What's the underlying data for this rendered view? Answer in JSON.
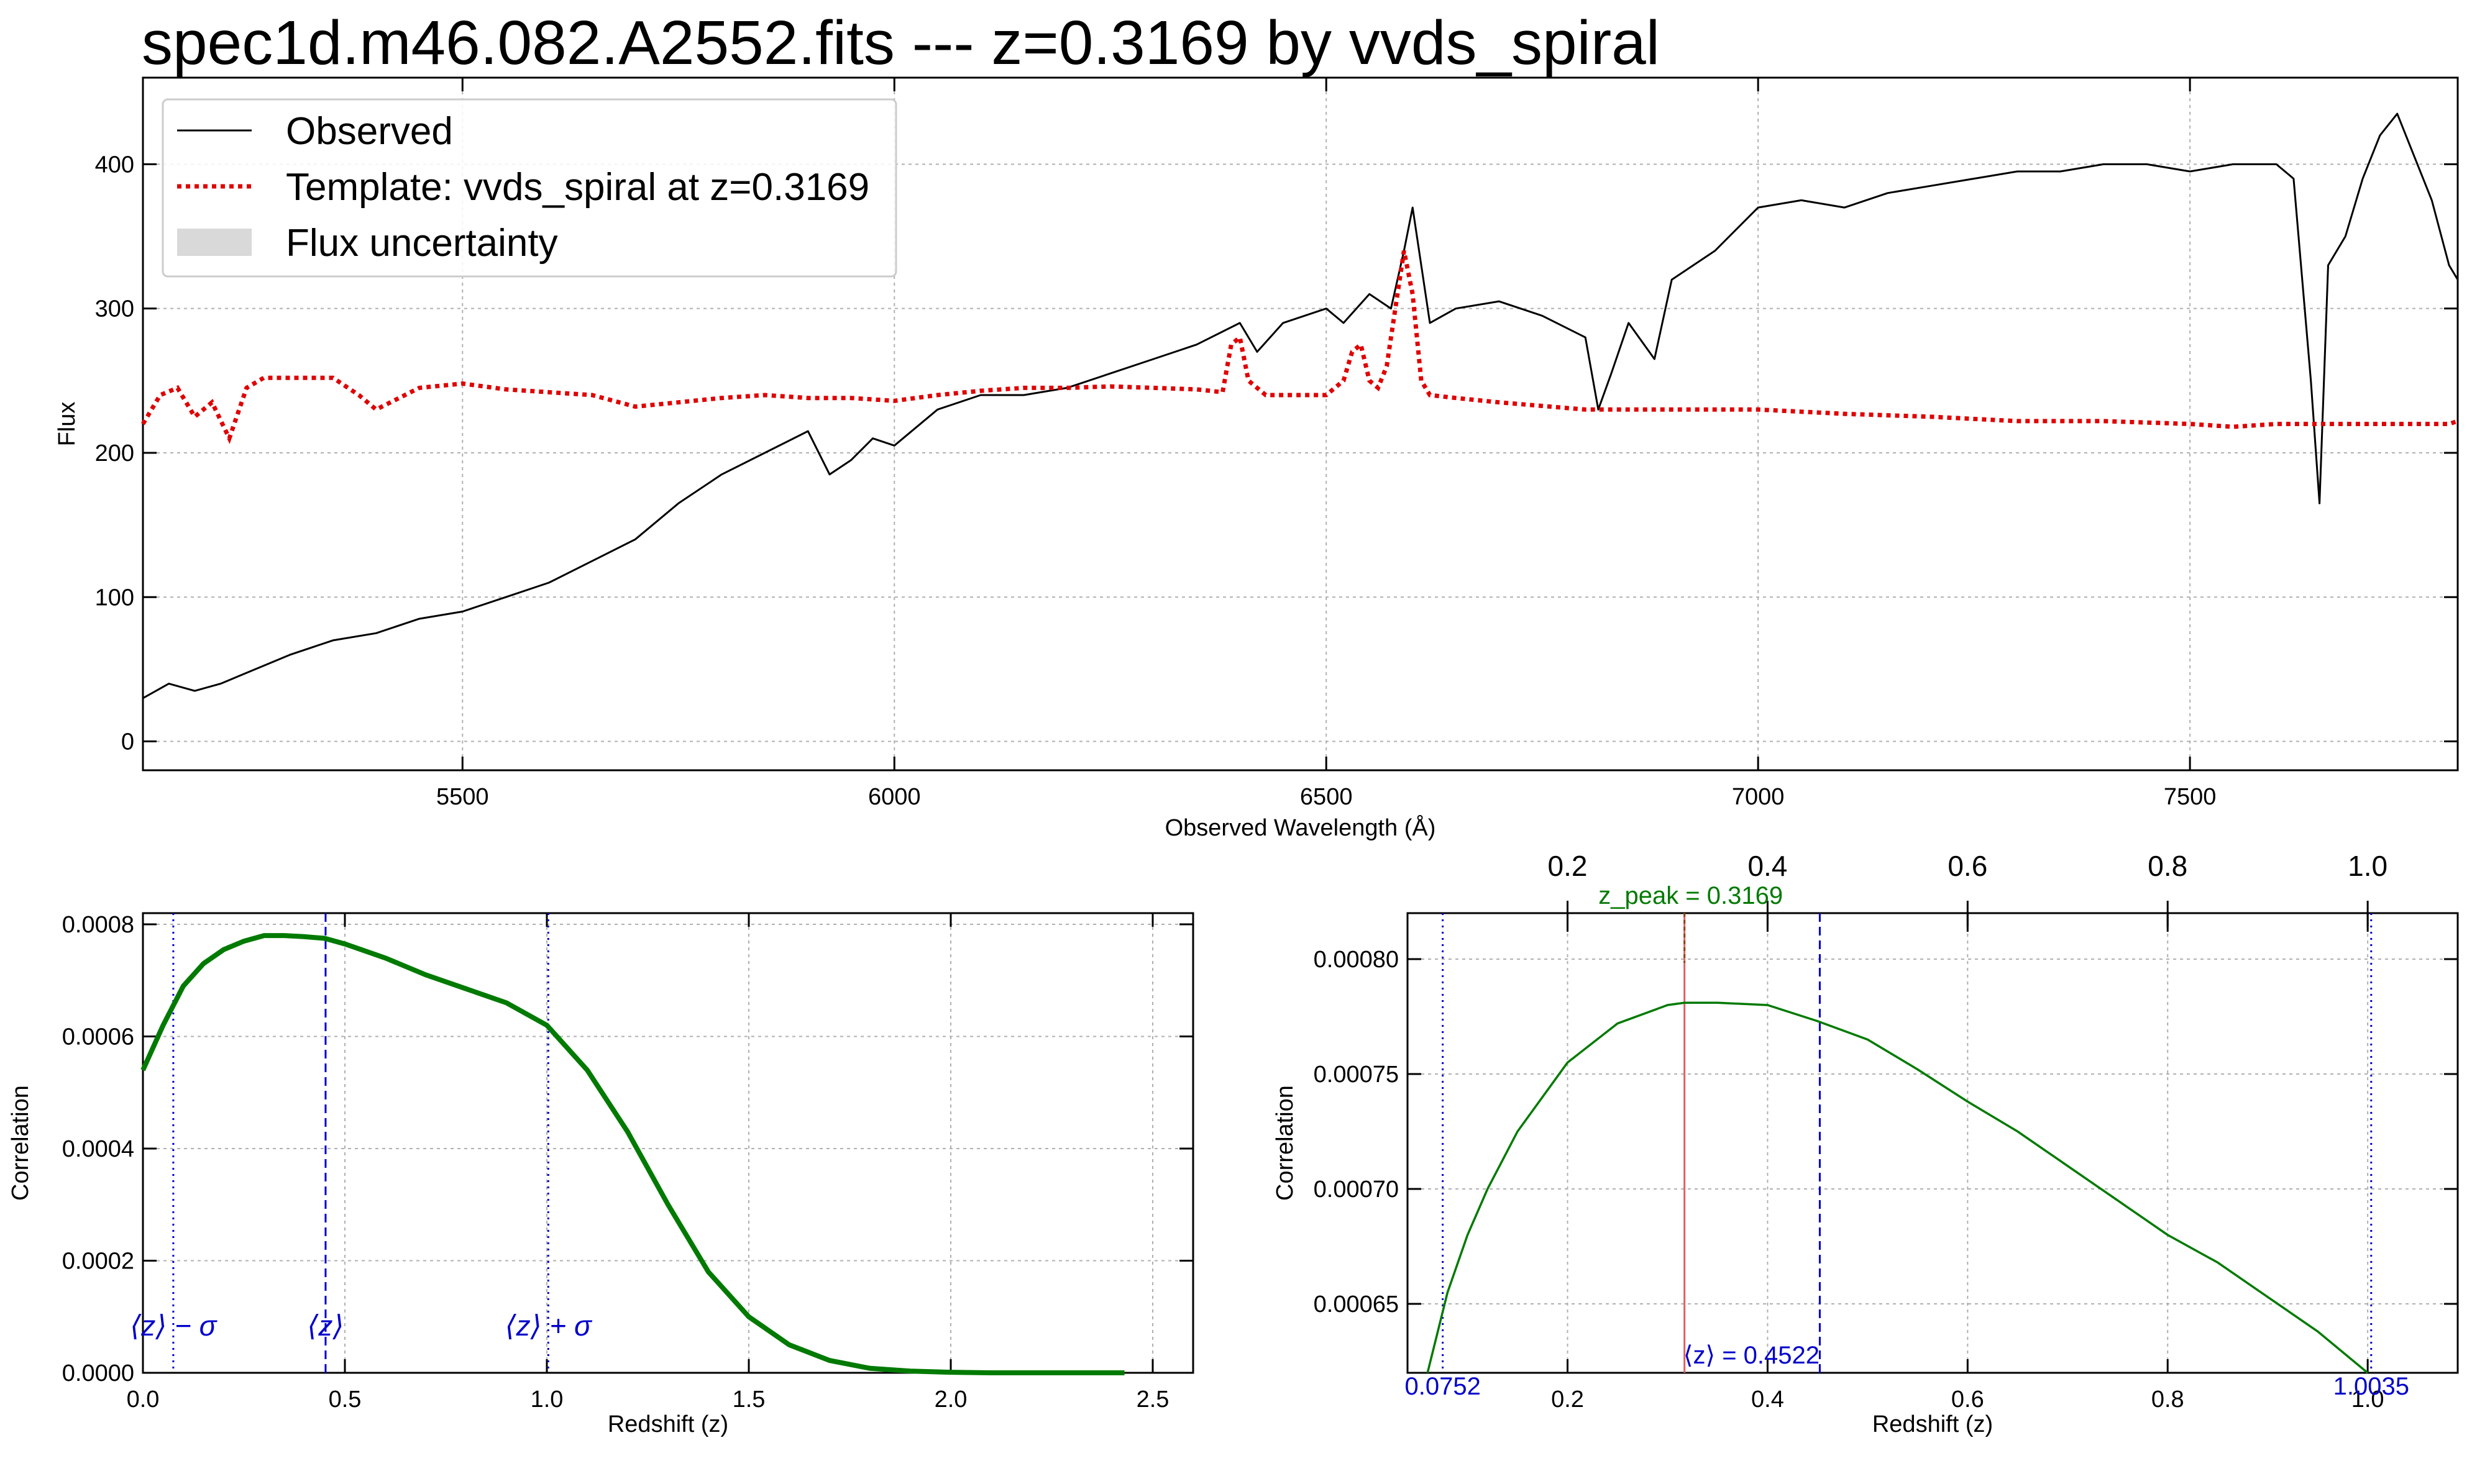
{
  "title": "spec1d.m46.082.A2552.fits --- z=0.3169 by vvds_spiral",
  "colors": {
    "observed": "#000000",
    "template": "#e00000",
    "uncertainty": "#d9d9d9",
    "correlation": "#007a00",
    "zmean": "#0000cc",
    "zpeak_line": "#e06060",
    "grid": "#b0b0b0"
  },
  "chart_data": [
    {
      "type": "line",
      "xlabel": "Observed Wavelength (Å)",
      "ylabel": "Flux",
      "xlim": [
        5130,
        7810
      ],
      "ylim": [
        -20,
        460
      ],
      "xticks": [
        5500,
        6000,
        6500,
        7000,
        7500
      ],
      "yticks": [
        0,
        100,
        200,
        300,
        400
      ],
      "grid": true,
      "legend_position": "top-left",
      "legend": [
        "Observed",
        "Template: vvds_spiral at z=0.3169",
        "Flux uncertainty"
      ],
      "series": [
        {
          "name": "Observed",
          "x": [
            5130,
            5160,
            5190,
            5220,
            5260,
            5300,
            5350,
            5400,
            5450,
            5500,
            5550,
            5600,
            5650,
            5700,
            5750,
            5800,
            5850,
            5900,
            5925,
            5950,
            5975,
            6000,
            6050,
            6100,
            6150,
            6200,
            6250,
            6300,
            6350,
            6400,
            6420,
            6450,
            6500,
            6520,
            6550,
            6575,
            6590,
            6600,
            6620,
            6650,
            6700,
            6750,
            6800,
            6815,
            6830,
            6850,
            6880,
            6900,
            6950,
            7000,
            7050,
            7100,
            7150,
            7200,
            7250,
            7300,
            7350,
            7400,
            7450,
            7500,
            7550,
            7600,
            7620,
            7640,
            7650,
            7660,
            7680,
            7700,
            7720,
            7740,
            7760,
            7780,
            7800,
            7810
          ],
          "y": [
            30,
            40,
            35,
            40,
            50,
            60,
            70,
            75,
            85,
            90,
            100,
            110,
            125,
            140,
            165,
            185,
            200,
            215,
            185,
            195,
            210,
            205,
            230,
            240,
            240,
            245,
            255,
            265,
            275,
            290,
            270,
            290,
            300,
            290,
            310,
            300,
            340,
            370,
            290,
            300,
            305,
            295,
            280,
            230,
            255,
            290,
            265,
            320,
            340,
            370,
            375,
            370,
            380,
            385,
            390,
            395,
            395,
            400,
            400,
            395,
            400,
            400,
            390,
            250,
            165,
            330,
            350,
            390,
            420,
            435,
            405,
            375,
            330,
            320
          ]
        },
        {
          "name": "Template: vvds_spiral at z=0.3169",
          "x": [
            5130,
            5150,
            5170,
            5190,
            5210,
            5230,
            5250,
            5270,
            5300,
            5350,
            5380,
            5400,
            5450,
            5500,
            5550,
            5600,
            5650,
            5700,
            5750,
            5800,
            5850,
            5900,
            5950,
            6000,
            6050,
            6100,
            6150,
            6200,
            6250,
            6300,
            6350,
            6380,
            6390,
            6400,
            6410,
            6420,
            6430,
            6450,
            6500,
            6520,
            6530,
            6540,
            6550,
            6560,
            6570,
            6580,
            6590,
            6600,
            6610,
            6620,
            6650,
            6700,
            6800,
            6900,
            7000,
            7100,
            7200,
            7300,
            7400,
            7500,
            7550,
            7600,
            7700,
            7800,
            7810
          ],
          "y": [
            220,
            240,
            245,
            225,
            235,
            210,
            245,
            252,
            252,
            252,
            240,
            230,
            245,
            248,
            244,
            242,
            240,
            232,
            235,
            238,
            240,
            238,
            238,
            236,
            240,
            243,
            245,
            245,
            246,
            245,
            244,
            242,
            275,
            280,
            250,
            245,
            240,
            240,
            240,
            250,
            270,
            275,
            250,
            245,
            260,
            300,
            340,
            310,
            250,
            240,
            238,
            235,
            230,
            230,
            230,
            227,
            225,
            222,
            222,
            220,
            218,
            220,
            220,
            220,
            222
          ]
        }
      ]
    },
    {
      "type": "line",
      "xlabel": "Redshift (z)",
      "ylabel": "Correlation",
      "xlim": [
        0,
        2.6
      ],
      "ylim": [
        0,
        0.00082
      ],
      "xticks": [
        0.0,
        0.5,
        1.0,
        1.5,
        2.0,
        2.5
      ],
      "xtick_labels": [
        "0.0",
        "0.5",
        "1.0",
        "1.5",
        "2.0",
        "2.5"
      ],
      "yticks": [
        0.0,
        0.0002,
        0.0004,
        0.0006,
        0.0008
      ],
      "ytick_labels": [
        "0.0000",
        "0.0002",
        "0.0004",
        "0.0006",
        "0.0008"
      ],
      "grid": true,
      "series": [
        {
          "name": "",
          "x": [
            0.0,
            0.05,
            0.1,
            0.15,
            0.2,
            0.25,
            0.3,
            0.35,
            0.4,
            0.45,
            0.5,
            0.6,
            0.7,
            0.8,
            0.9,
            1.0,
            1.1,
            1.2,
            1.3,
            1.4,
            1.5,
            1.6,
            1.7,
            1.8,
            1.9,
            2.0,
            2.1,
            2.2,
            2.3,
            2.43
          ],
          "y": [
            0.00054,
            0.00062,
            0.00069,
            0.00073,
            0.000755,
            0.00077,
            0.00078,
            0.00078,
            0.000778,
            0.000775,
            0.000765,
            0.00074,
            0.00071,
            0.000685,
            0.00066,
            0.00062,
            0.00054,
            0.00043,
            0.0003,
            0.00018,
            0.0001,
            5e-05,
            2.2e-05,
            8e-06,
            3e-06,
            1e-06,
            0.0,
            0.0,
            0.0,
            0.0
          ]
        }
      ],
      "vlines": [
        {
          "x": 0.0752,
          "style": "dotted",
          "label": "⟨z⟩ − σ"
        },
        {
          "x": 0.4522,
          "style": "dashed",
          "label": "⟨z⟩"
        },
        {
          "x": 1.0035,
          "style": "dotted",
          "label": "⟨z⟩ + σ"
        }
      ]
    },
    {
      "type": "line",
      "xlabel": "Redshift (z)",
      "ylabel": "Correlation",
      "xlim": [
        0.04,
        1.09
      ],
      "ylim": [
        0.00062,
        0.00082
      ],
      "xticks": [
        0.2,
        0.4,
        0.6,
        0.8,
        1.0
      ],
      "xtick_labels": [
        "0.2",
        "0.4",
        "0.6",
        "0.8",
        "1.0"
      ],
      "yticks": [
        0.00065,
        0.0007,
        0.00075,
        0.0008
      ],
      "ytick_labels": [
        "0.00065",
        "0.00070",
        "0.00075",
        "0.00080"
      ],
      "grid": true,
      "series": [
        {
          "name": "",
          "x": [
            0.06,
            0.08,
            0.1,
            0.12,
            0.15,
            0.2,
            0.25,
            0.3,
            0.3169,
            0.35,
            0.4,
            0.45,
            0.5,
            0.55,
            0.6,
            0.65,
            0.7,
            0.75,
            0.8,
            0.85,
            0.9,
            0.95,
            1.0
          ],
          "y": [
            0.00062,
            0.000655,
            0.00068,
            0.0007,
            0.000725,
            0.000755,
            0.000772,
            0.00078,
            0.000781,
            0.000781,
            0.00078,
            0.000773,
            0.000765,
            0.000752,
            0.000738,
            0.000725,
            0.00071,
            0.000695,
            0.00068,
            0.000668,
            0.000653,
            0.000638,
            0.00062
          ]
        }
      ],
      "vlines": [
        {
          "x": 0.0752,
          "style": "dotted",
          "label": "0.0752"
        },
        {
          "x": 0.4522,
          "style": "dashed",
          "label": "⟨z⟩ = 0.4522"
        },
        {
          "x": 1.0035,
          "style": "dotted",
          "label": "1.0035"
        },
        {
          "x": 0.3169,
          "style": "solid",
          "label": "z_peak = 0.3169"
        }
      ]
    }
  ]
}
